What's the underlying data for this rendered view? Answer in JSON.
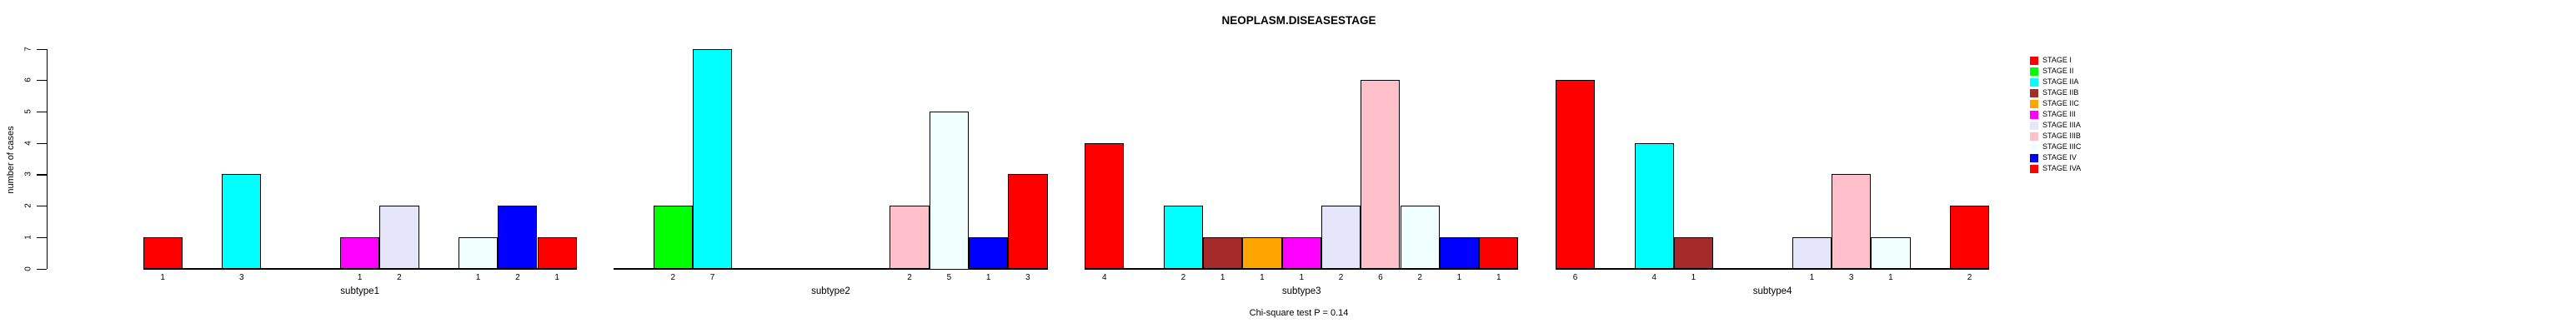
{
  "chart_data": {
    "type": "bar",
    "title": "NEOPLASM.DISEASESTAGE",
    "ylabel": "number of cases",
    "footnote": "Chi-square test P = 0.14",
    "categories": [
      "subtype1",
      "subtype2",
      "subtype3",
      "subtype4"
    ],
    "series": [
      {
        "name": "STAGE I",
        "color": "#FF0000",
        "values": [
          1,
          0,
          4,
          6
        ]
      },
      {
        "name": "STAGE II",
        "color": "#00FF00",
        "values": [
          0,
          2,
          0,
          0
        ]
      },
      {
        "name": "STAGE IIA",
        "color": "#00FFFF",
        "values": [
          3,
          7,
          2,
          4
        ]
      },
      {
        "name": "STAGE IIB",
        "color": "#A52A2A",
        "values": [
          0,
          0,
          1,
          1
        ]
      },
      {
        "name": "STAGE IIC",
        "color": "#FFA500",
        "values": [
          0,
          0,
          1,
          0
        ]
      },
      {
        "name": "STAGE III",
        "color": "#FF00FF",
        "values": [
          1,
          0,
          1,
          0
        ]
      },
      {
        "name": "STAGE IIIA",
        "color": "#E6E6FA",
        "values": [
          2,
          0,
          2,
          1
        ]
      },
      {
        "name": "STAGE IIIB",
        "color": "#FFC0CB",
        "values": [
          0,
          2,
          6,
          3
        ]
      },
      {
        "name": "STAGE IIIC",
        "color": "#F0FFFF",
        "values": [
          1,
          5,
          2,
          1
        ]
      },
      {
        "name": "STAGE IV",
        "color": "#0000FF",
        "values": [
          2,
          1,
          1,
          0
        ]
      },
      {
        "name": "STAGE IVA",
        "color": "#FF0000",
        "values": [
          1,
          3,
          1,
          2
        ]
      }
    ],
    "yticks": [
      0,
      1,
      2,
      3,
      4,
      5,
      6,
      7
    ],
    "ylim": [
      0,
      7
    ],
    "bar_value_labels_shown": true,
    "grid": false,
    "legend_position": "right",
    "background_color": "#FFFFFF",
    "axis_color": "#000000"
  }
}
